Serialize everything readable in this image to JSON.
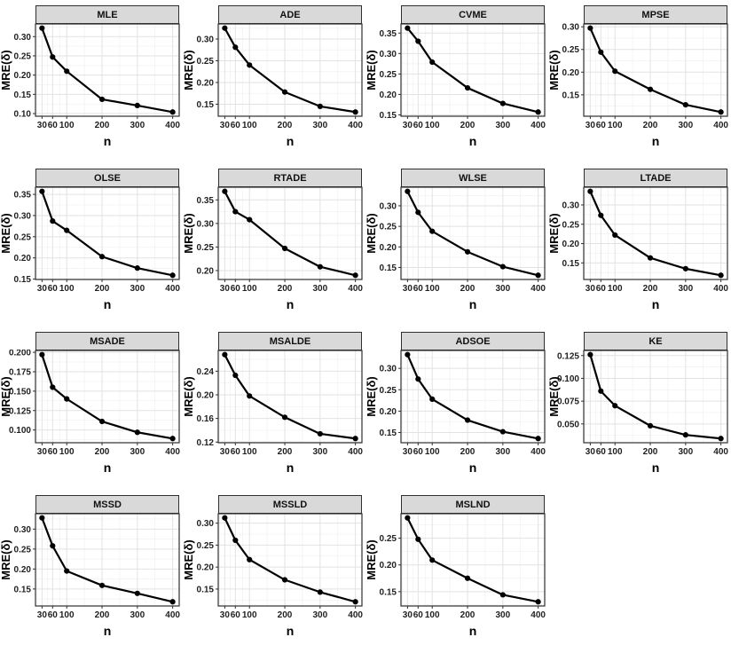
{
  "figure": {
    "title": "",
    "xlabel": "n",
    "ylabel": "MRE(δ)",
    "x_ticks": [
      30,
      60,
      100,
      200,
      300,
      400
    ],
    "grid": "on",
    "layout": {
      "columns": 4,
      "rows": 4,
      "panel_count": 15
    },
    "styles": {
      "line_color": "#000000",
      "point_color": "#000000",
      "strip_bg": "#d9d9d9",
      "panel_border": "#2f2f2f",
      "grid_major": "#e2e2e2",
      "grid_minor": "#f0f0f0",
      "text_color": "#1f1f1f",
      "background": "#ffffff"
    }
  },
  "chart_data": [
    {
      "type": "line",
      "title": "MLE",
      "xlabel": "n",
      "ylabel": "MRE(δ)",
      "x": [
        30,
        60,
        100,
        200,
        300,
        400
      ],
      "values": [
        0.322,
        0.247,
        0.21,
        0.137,
        0.121,
        0.104
      ],
      "yticks": [
        0.1,
        0.15,
        0.2,
        0.25,
        0.3
      ],
      "ytick_labels": [
        "0.10",
        "0.15",
        "0.20",
        "0.25",
        "0.30"
      ]
    },
    {
      "type": "line",
      "title": "ADE",
      "xlabel": "n",
      "ylabel": "MRE(δ)",
      "x": [
        30,
        60,
        100,
        200,
        300,
        400
      ],
      "values": [
        0.325,
        0.281,
        0.24,
        0.178,
        0.145,
        0.132
      ],
      "yticks": [
        0.15,
        0.2,
        0.25,
        0.3
      ],
      "ytick_labels": [
        "0.15",
        "0.20",
        "0.25",
        "0.30"
      ]
    },
    {
      "type": "line",
      "title": "CVME",
      "xlabel": "n",
      "ylabel": "MRE(δ)",
      "x": [
        30,
        60,
        100,
        200,
        300,
        400
      ],
      "values": [
        0.362,
        0.33,
        0.279,
        0.216,
        0.178,
        0.157
      ],
      "yticks": [
        0.15,
        0.2,
        0.25,
        0.3,
        0.35
      ],
      "ytick_labels": [
        "0.15",
        "0.20",
        "0.25",
        "0.30",
        "0.35"
      ]
    },
    {
      "type": "line",
      "title": "MPSE",
      "xlabel": "n",
      "ylabel": "MRE(δ)",
      "x": [
        30,
        60,
        100,
        200,
        300,
        400
      ],
      "values": [
        0.297,
        0.244,
        0.202,
        0.162,
        0.128,
        0.112
      ],
      "yticks": [
        0.15,
        0.2,
        0.25,
        0.3
      ],
      "ytick_labels": [
        "0.15",
        "0.20",
        "0.25",
        "0.30"
      ]
    },
    {
      "type": "line",
      "title": "OLSE",
      "xlabel": "n",
      "ylabel": "MRE(δ)",
      "x": [
        30,
        60,
        100,
        200,
        300,
        400
      ],
      "values": [
        0.357,
        0.287,
        0.265,
        0.203,
        0.176,
        0.159
      ],
      "yticks": [
        0.15,
        0.2,
        0.25,
        0.3,
        0.35
      ],
      "ytick_labels": [
        "0.15",
        "0.20",
        "0.25",
        "0.30",
        "0.35"
      ]
    },
    {
      "type": "line",
      "title": "RTADE",
      "xlabel": "n",
      "ylabel": "MRE(δ)",
      "x": [
        30,
        60,
        100,
        200,
        300,
        400
      ],
      "values": [
        0.368,
        0.325,
        0.308,
        0.247,
        0.208,
        0.19
      ],
      "yticks": [
        0.2,
        0.25,
        0.3,
        0.35
      ],
      "ytick_labels": [
        "0.20",
        "0.25",
        "0.30",
        "0.35"
      ]
    },
    {
      "type": "line",
      "title": "WLSE",
      "xlabel": "n",
      "ylabel": "MRE(δ)",
      "x": [
        30,
        60,
        100,
        200,
        300,
        400
      ],
      "values": [
        0.335,
        0.284,
        0.238,
        0.188,
        0.152,
        0.131
      ],
      "yticks": [
        0.15,
        0.2,
        0.25,
        0.3
      ],
      "ytick_labels": [
        "0.15",
        "0.20",
        "0.25",
        "0.30"
      ]
    },
    {
      "type": "line",
      "title": "LTADE",
      "xlabel": "n",
      "ylabel": "MRE(δ)",
      "x": [
        30,
        60,
        100,
        200,
        300,
        400
      ],
      "values": [
        0.335,
        0.273,
        0.222,
        0.163,
        0.135,
        0.118
      ],
      "yticks": [
        0.15,
        0.2,
        0.25,
        0.3
      ],
      "ytick_labels": [
        "0.15",
        "0.20",
        "0.25",
        "0.30"
      ]
    },
    {
      "type": "line",
      "title": "MSADE",
      "xlabel": "n",
      "ylabel": "MRE(δ)",
      "x": [
        30,
        60,
        100,
        200,
        300,
        400
      ],
      "values": [
        0.197,
        0.155,
        0.14,
        0.111,
        0.097,
        0.089
      ],
      "yticks": [
        0.1,
        0.125,
        0.15,
        0.175,
        0.2
      ],
      "ytick_labels": [
        "0.100",
        "0.125",
        "0.150",
        "0.175",
        "0.200"
      ]
    },
    {
      "type": "line",
      "title": "MSALDE",
      "xlabel": "n",
      "ylabel": "MRE(δ)",
      "x": [
        30,
        60,
        100,
        200,
        300,
        400
      ],
      "values": [
        0.268,
        0.233,
        0.198,
        0.162,
        0.134,
        0.126
      ],
      "yticks": [
        0.12,
        0.16,
        0.2,
        0.24
      ],
      "ytick_labels": [
        "0.12",
        "0.16",
        "0.20",
        "0.24"
      ]
    },
    {
      "type": "line",
      "title": "ADSOE",
      "xlabel": "n",
      "ylabel": "MRE(δ)",
      "x": [
        30,
        60,
        100,
        200,
        300,
        400
      ],
      "values": [
        0.332,
        0.275,
        0.228,
        0.179,
        0.152,
        0.136
      ],
      "yticks": [
        0.15,
        0.2,
        0.25,
        0.3
      ],
      "ytick_labels": [
        "0.15",
        "0.20",
        "0.25",
        "0.30"
      ]
    },
    {
      "type": "line",
      "title": "KE",
      "xlabel": "n",
      "ylabel": "MRE(δ)",
      "x": [
        30,
        60,
        100,
        200,
        300,
        400
      ],
      "values": [
        0.126,
        0.086,
        0.07,
        0.048,
        0.038,
        0.034
      ],
      "yticks": [
        0.05,
        0.075,
        0.1,
        0.125
      ],
      "ytick_labels": [
        "0.050",
        "0.075",
        "0.100",
        "0.125"
      ]
    },
    {
      "type": "line",
      "title": "MSSD",
      "xlabel": "n",
      "ylabel": "MRE(δ)",
      "x": [
        30,
        60,
        100,
        200,
        300,
        400
      ],
      "values": [
        0.328,
        0.258,
        0.195,
        0.159,
        0.139,
        0.118
      ],
      "yticks": [
        0.15,
        0.2,
        0.25,
        0.3
      ],
      "ytick_labels": [
        "0.15",
        "0.20",
        "0.25",
        "0.30"
      ]
    },
    {
      "type": "line",
      "title": "MSSLD",
      "xlabel": "n",
      "ylabel": "MRE(δ)",
      "x": [
        30,
        60,
        100,
        200,
        300,
        400
      ],
      "values": [
        0.312,
        0.261,
        0.217,
        0.171,
        0.143,
        0.121
      ],
      "yticks": [
        0.15,
        0.2,
        0.25,
        0.3
      ],
      "ytick_labels": [
        "0.15",
        "0.20",
        "0.25",
        "0.30"
      ]
    },
    {
      "type": "line",
      "title": "MSLND",
      "xlabel": "n",
      "ylabel": "MRE(δ)",
      "x": [
        30,
        60,
        100,
        200,
        300,
        400
      ],
      "values": [
        0.288,
        0.248,
        0.209,
        0.175,
        0.144,
        0.131
      ],
      "yticks": [
        0.15,
        0.2,
        0.25
      ],
      "ytick_labels": [
        "0.15",
        "0.20",
        "0.25"
      ]
    }
  ]
}
